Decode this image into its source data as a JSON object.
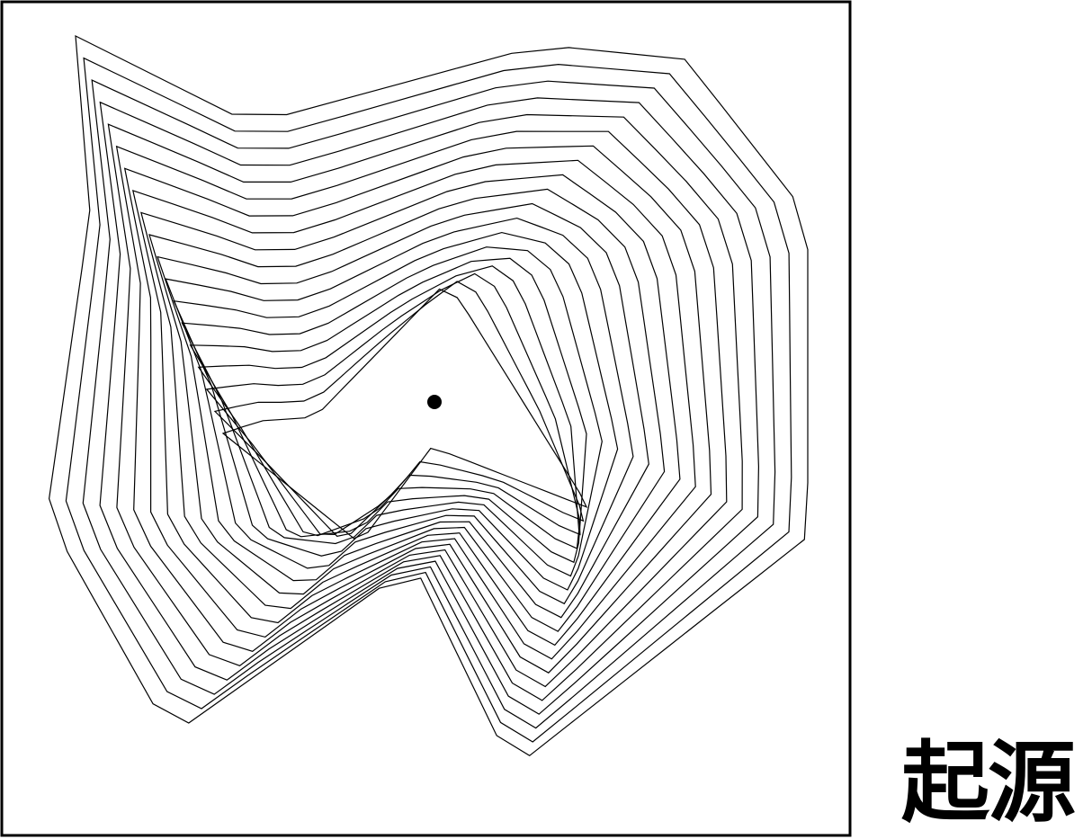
{
  "caption": "起源",
  "colors": {
    "background": "#ffffff",
    "ink": "#000000"
  },
  "artwork": {
    "description_icon": "nested-polygon-spiral",
    "ring_count": 19
  }
}
